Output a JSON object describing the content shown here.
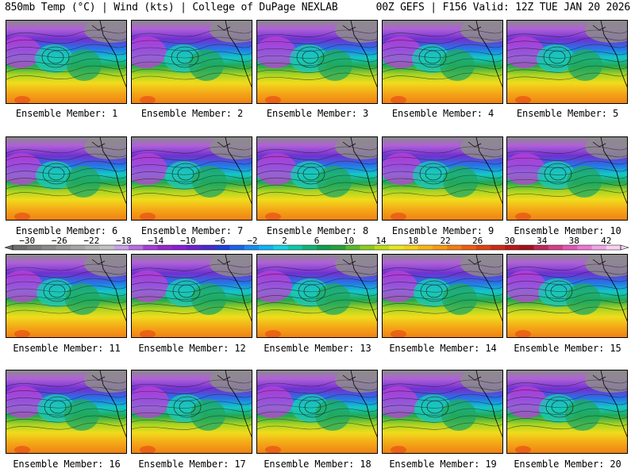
{
  "header": {
    "left": "850mb Temp (°C) | Wind (kts) | College of DuPage NEXLAB",
    "right": "00Z GEFS | F156 Valid: 12Z TUE JAN 20 2026"
  },
  "colors": {
    "background": "#ffffff",
    "scale": [
      "#6e6e6e",
      "#7c7c7c",
      "#8a8a8a",
      "#989898",
      "#a6a6a6",
      "#b4b4b4",
      "#c2c2c2",
      "#c8a2e6",
      "#b86ee0",
      "#a640d6",
      "#9628c8",
      "#8a1fd6",
      "#6a22d0",
      "#4a2cc8",
      "#2040d8",
      "#1a66e6",
      "#1a8cf0",
      "#10b2f4",
      "#18d2e0",
      "#10c8a8",
      "#12b478",
      "#109e50",
      "#2aa03a",
      "#5cb82c",
      "#8ccc22",
      "#bedc1a",
      "#e8e81e",
      "#f4d21a",
      "#f6b418",
      "#f69c16",
      "#f27e14",
      "#ea6012",
      "#dc4414",
      "#cc2c18",
      "#b81a1a",
      "#a0141e",
      "#c02858",
      "#d4408a",
      "#e058b6",
      "#ea78d4",
      "#f0a4e6",
      "#f8d0f2"
    ]
  },
  "colorbar": {
    "tick_labels": [
      "−30",
      "−26",
      "−22",
      "−18",
      "−14",
      "−10",
      "−6",
      "−2",
      "2",
      "6",
      "10",
      "14",
      "18",
      "22",
      "26",
      "30",
      "34",
      "38",
      "42"
    ]
  },
  "panels": [
    {
      "label": "Ensemble Member: 1"
    },
    {
      "label": "Ensemble Member: 2"
    },
    {
      "label": "Ensemble Member: 3"
    },
    {
      "label": "Ensemble Member: 4"
    },
    {
      "label": "Ensemble Member: 5"
    },
    {
      "label": "Ensemble Member: 6"
    },
    {
      "label": "Ensemble Member: 7"
    },
    {
      "label": "Ensemble Member: 8"
    },
    {
      "label": "Ensemble Member: 9"
    },
    {
      "label": "Ensemble Member: 10"
    },
    {
      "label": "Ensemble Member: 11"
    },
    {
      "label": "Ensemble Member: 12"
    },
    {
      "label": "Ensemble Member: 13"
    },
    {
      "label": "Ensemble Member: 14"
    },
    {
      "label": "Ensemble Member: 15"
    },
    {
      "label": "Ensemble Member: 16"
    },
    {
      "label": "Ensemble Member: 17"
    },
    {
      "label": "Ensemble Member: 18"
    },
    {
      "label": "Ensemble Member: 19"
    },
    {
      "label": "Ensemble Member: 20"
    }
  ]
}
